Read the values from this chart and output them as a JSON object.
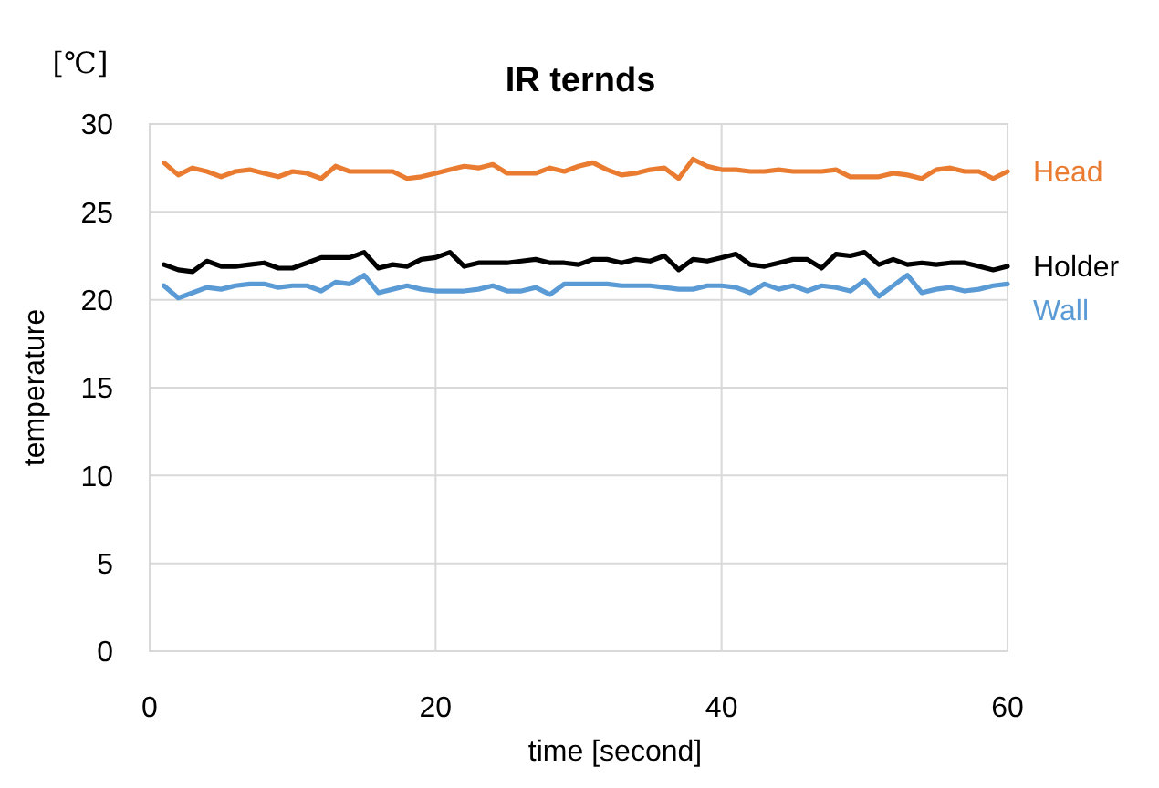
{
  "chart_data": {
    "type": "line",
    "title": "IR ternds",
    "xlabel": "time [second]",
    "ylabel": "temperature",
    "annotations": [
      "[℃]"
    ],
    "x": [
      1,
      2,
      3,
      4,
      5,
      6,
      7,
      8,
      9,
      10,
      11,
      12,
      13,
      14,
      15,
      16,
      17,
      18,
      19,
      20,
      21,
      22,
      23,
      24,
      25,
      26,
      27,
      28,
      29,
      30,
      31,
      32,
      33,
      34,
      35,
      36,
      37,
      38,
      39,
      40,
      41,
      42,
      43,
      44,
      45,
      46,
      47,
      48,
      49,
      50,
      51,
      52,
      53,
      54,
      55,
      56,
      57,
      58,
      59,
      60
    ],
    "xlim": [
      0,
      60
    ],
    "xticks": [
      0,
      20,
      40,
      60
    ],
    "ylim": [
      0,
      30
    ],
    "yticks": [
      0,
      5,
      10,
      15,
      20,
      25,
      30
    ],
    "grid": true,
    "legend": "right",
    "marker": "none",
    "line_style": "solid",
    "series": [
      {
        "name": "Head",
        "color": "#e97c30",
        "values": [
          27.8,
          27.1,
          27.5,
          27.3,
          27.0,
          27.3,
          27.4,
          27.2,
          27.0,
          27.3,
          27.2,
          26.9,
          27.6,
          27.3,
          27.3,
          27.3,
          27.3,
          26.9,
          27.0,
          27.2,
          27.4,
          27.6,
          27.5,
          27.7,
          27.2,
          27.2,
          27.2,
          27.5,
          27.3,
          27.6,
          27.8,
          27.4,
          27.1,
          27.2,
          27.4,
          27.5,
          26.9,
          28.0,
          27.6,
          27.4,
          27.4,
          27.3,
          27.3,
          27.4,
          27.3,
          27.3,
          27.3,
          27.4,
          27.0,
          27.0,
          27.0,
          27.2,
          27.1,
          26.9,
          27.4,
          27.5,
          27.3,
          27.3,
          26.9,
          27.3
        ]
      },
      {
        "name": "Holder",
        "color": "#000000",
        "values": [
          22.0,
          21.7,
          21.6,
          22.2,
          21.9,
          21.9,
          22.0,
          22.1,
          21.8,
          21.8,
          22.1,
          22.4,
          22.4,
          22.4,
          22.7,
          21.8,
          22.0,
          21.9,
          22.3,
          22.4,
          22.7,
          21.9,
          22.1,
          22.1,
          22.1,
          22.2,
          22.3,
          22.1,
          22.1,
          22.0,
          22.3,
          22.3,
          22.1,
          22.3,
          22.2,
          22.5,
          21.7,
          22.3,
          22.2,
          22.4,
          22.6,
          22.0,
          21.9,
          22.1,
          22.3,
          22.3,
          21.8,
          22.6,
          22.5,
          22.7,
          22.0,
          22.3,
          22.0,
          22.1,
          22.0,
          22.1,
          22.1,
          21.9,
          21.7,
          21.9
        ]
      },
      {
        "name": "Wall",
        "color": "#5b9bd5",
        "values": [
          20.8,
          20.1,
          20.4,
          20.7,
          20.6,
          20.8,
          20.9,
          20.9,
          20.7,
          20.8,
          20.8,
          20.5,
          21.0,
          20.9,
          21.4,
          20.4,
          20.6,
          20.8,
          20.6,
          20.5,
          20.5,
          20.5,
          20.6,
          20.8,
          20.5,
          20.5,
          20.7,
          20.3,
          20.9,
          20.9,
          20.9,
          20.9,
          20.8,
          20.8,
          20.8,
          20.7,
          20.6,
          20.6,
          20.8,
          20.8,
          20.7,
          20.4,
          20.9,
          20.6,
          20.8,
          20.5,
          20.8,
          20.7,
          20.5,
          21.1,
          20.2,
          20.8,
          21.4,
          20.4,
          20.6,
          20.7,
          20.5,
          20.6,
          20.8,
          20.9
        ]
      }
    ]
  }
}
